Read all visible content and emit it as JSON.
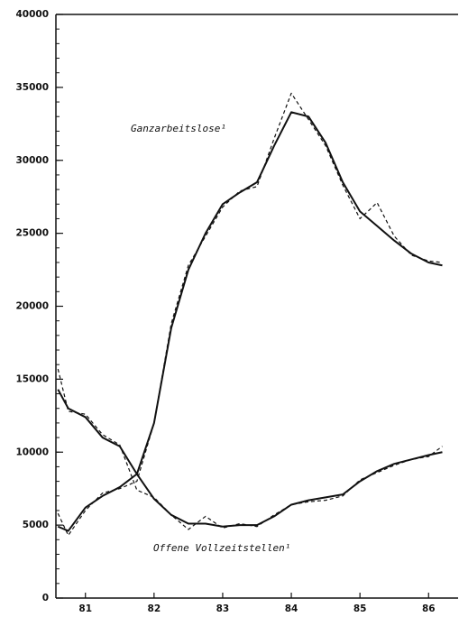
{
  "chart_data": {
    "type": "line",
    "x": [
      80.6,
      80.75,
      81.0,
      81.25,
      81.5,
      81.75,
      82.0,
      82.25,
      82.5,
      82.75,
      83.0,
      83.25,
      83.5,
      83.75,
      84.0,
      84.25,
      84.5,
      84.75,
      85.0,
      85.25,
      85.5,
      85.75,
      86.0,
      86.2
    ],
    "series": [
      {
        "name": "Ganzarbeitslose¹",
        "color": "#111111",
        "values": [
          4900,
          4600,
          6200,
          7000,
          7600,
          8500,
          12000,
          18500,
          22500,
          25000,
          27000,
          27800,
          28500,
          31000,
          33300,
          33000,
          31200,
          28500,
          26500,
          25500,
          24500,
          23600,
          23000,
          22800
        ],
        "raw": [
          5800,
          4300,
          6000,
          7200,
          7500,
          8000,
          12000,
          18800,
          22800,
          24800,
          26800,
          27900,
          28200,
          31500,
          34600,
          32800,
          31000,
          28300,
          26000,
          27100,
          24800,
          23500,
          23100,
          23000
        ]
      },
      {
        "name": "Offene Vollzeitstellen¹",
        "color": "#111111",
        "values": [
          14300,
          13000,
          12400,
          11000,
          10400,
          8500,
          6800,
          5700,
          5100,
          5100,
          4900,
          5000,
          5000,
          5600,
          6400,
          6700,
          6900,
          7100,
          8000,
          8700,
          9200,
          9500,
          9800,
          10000
        ],
        "raw": [
          15700,
          12800,
          12600,
          11200,
          10500,
          7400,
          6900,
          5700,
          4700,
          5600,
          4800,
          5100,
          4900,
          5700,
          6400,
          6600,
          6700,
          7000,
          8100,
          8600,
          9100,
          9500,
          9700,
          10400
        ]
      }
    ],
    "xlim": [
      80.57,
      86.43
    ],
    "xticks": [
      81,
      82,
      83,
      84,
      85,
      86
    ],
    "ylim": [
      0,
      40000
    ],
    "yticks": [
      0,
      5000,
      10000,
      15000,
      20000,
      25000,
      30000,
      35000,
      40000
    ],
    "grid": false
  }
}
